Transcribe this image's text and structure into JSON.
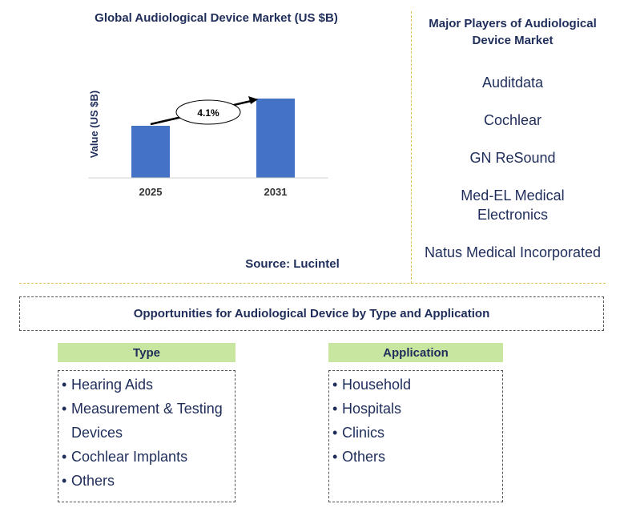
{
  "chart_data": {
    "type": "bar",
    "title": "Global Audiological Device Market (US $B)",
    "categories": [
      "2025",
      "2031"
    ],
    "values": [
      6.5,
      9.9
    ],
    "ylabel": "Value (US $B)",
    "xlabel": "",
    "ylim": [
      0,
      10
    ],
    "annotation": "4.1%",
    "bar_color": "#4472c4",
    "grid": false
  },
  "source": "Source: Lucintel",
  "players": {
    "title": "Major Players of Audiological Device Market",
    "items": [
      "Auditdata",
      "Cochlear",
      "GN ReSound",
      "Med-EL Medical Electronics",
      "Natus Medical Incorporated"
    ]
  },
  "opportunities": {
    "title": "Opportunities for Audiological Device by Type and Application",
    "type": {
      "header": "Type",
      "items": [
        "Hearing Aids",
        "Measurement & Testing",
        "Devices",
        "Cochlear Implants",
        "Others"
      ]
    },
    "application": {
      "header": "Application",
      "items": [
        "Household",
        "Hospitals",
        "Clinics",
        "Others"
      ]
    },
    "bullet": "•",
    "header_color": "#c8e6a0"
  }
}
